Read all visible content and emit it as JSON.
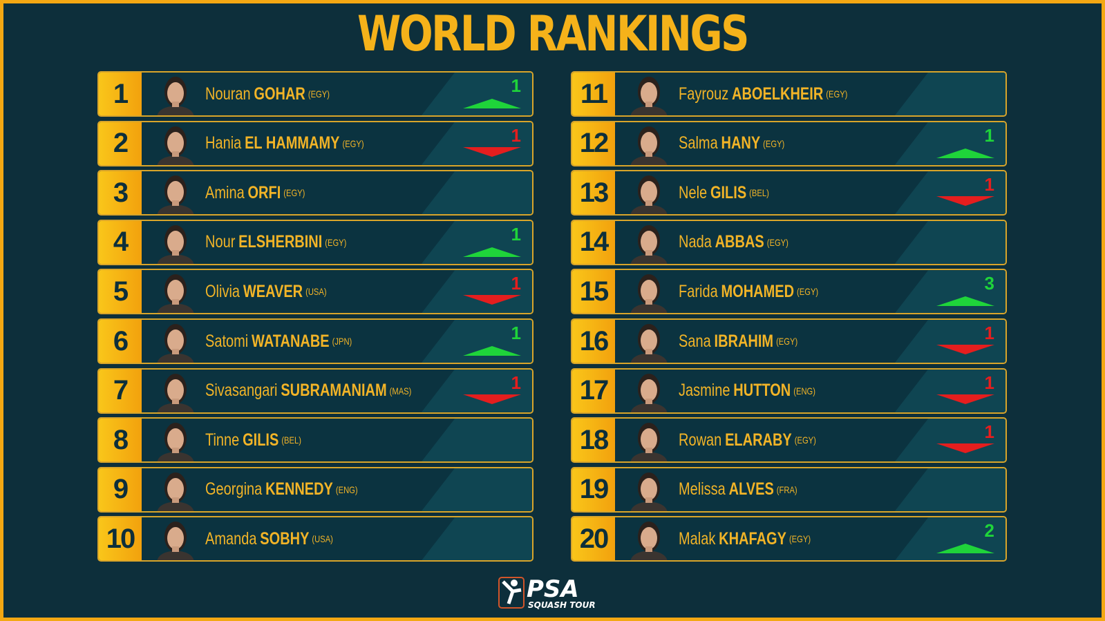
{
  "title": "WORLD RANKINGS",
  "colors": {
    "accent": "#f5b21a",
    "background": "#0d2f3b",
    "up": "#1fd43a",
    "down": "#e51e1e"
  },
  "players": [
    {
      "rank": "1",
      "first": "Nouran",
      "last": "GOHAR",
      "country": "(EGY)",
      "move": "up",
      "change": "1"
    },
    {
      "rank": "2",
      "first": "Hania",
      "last": "EL HAMMAMY",
      "country": "(EGY)",
      "move": "down",
      "change": "1"
    },
    {
      "rank": "3",
      "first": "Amina",
      "last": "ORFI",
      "country": "(EGY)",
      "move": "none",
      "change": ""
    },
    {
      "rank": "4",
      "first": "Nour",
      "last": "ELSHERBINI",
      "country": "(EGY)",
      "move": "up",
      "change": "1"
    },
    {
      "rank": "5",
      "first": "Olivia",
      "last": "WEAVER",
      "country": "(USA)",
      "move": "down",
      "change": "1"
    },
    {
      "rank": "6",
      "first": "Satomi",
      "last": "WATANABE",
      "country": "(JPN)",
      "move": "up",
      "change": "1"
    },
    {
      "rank": "7",
      "first": "Sivasangari",
      "last": "SUBRAMANIAM",
      "country": "(MAS)",
      "move": "down",
      "change": "1"
    },
    {
      "rank": "8",
      "first": "Tinne",
      "last": "GILIS",
      "country": "(BEL)",
      "move": "none",
      "change": ""
    },
    {
      "rank": "9",
      "first": "Georgina",
      "last": "KENNEDY",
      "country": "(ENG)",
      "move": "none",
      "change": ""
    },
    {
      "rank": "10",
      "first": "Amanda",
      "last": "SOBHY",
      "country": "(USA)",
      "move": "none",
      "change": ""
    },
    {
      "rank": "11",
      "first": "Fayrouz",
      "last": "ABOELKHEIR",
      "country": "(EGY)",
      "move": "none",
      "change": ""
    },
    {
      "rank": "12",
      "first": "Salma",
      "last": "HANY",
      "country": "(EGY)",
      "move": "up",
      "change": "1"
    },
    {
      "rank": "13",
      "first": "Nele",
      "last": "GILIS",
      "country": "(BEL)",
      "move": "down",
      "change": "1"
    },
    {
      "rank": "14",
      "first": "Nada",
      "last": "ABBAS",
      "country": "(EGY)",
      "move": "none",
      "change": ""
    },
    {
      "rank": "15",
      "first": "Farida",
      "last": "MOHAMED",
      "country": "(EGY)",
      "move": "up",
      "change": "3"
    },
    {
      "rank": "16",
      "first": "Sana",
      "last": "IBRAHIM",
      "country": "(EGY)",
      "move": "down",
      "change": "1"
    },
    {
      "rank": "17",
      "first": "Jasmine",
      "last": "HUTTON",
      "country": "(ENG)",
      "move": "down",
      "change": "1"
    },
    {
      "rank": "18",
      "first": "Rowan",
      "last": "ELARABY",
      "country": "(EGY)",
      "move": "down",
      "change": "1"
    },
    {
      "rank": "19",
      "first": "Melissa",
      "last": "ALVES",
      "country": "(FRA)",
      "move": "none",
      "change": ""
    },
    {
      "rank": "20",
      "first": "Malak",
      "last": "KHAFAGY",
      "country": "(EGY)",
      "move": "up",
      "change": "2"
    }
  ],
  "logo": {
    "name": "PSA",
    "sub": "SQUASH TOUR"
  }
}
